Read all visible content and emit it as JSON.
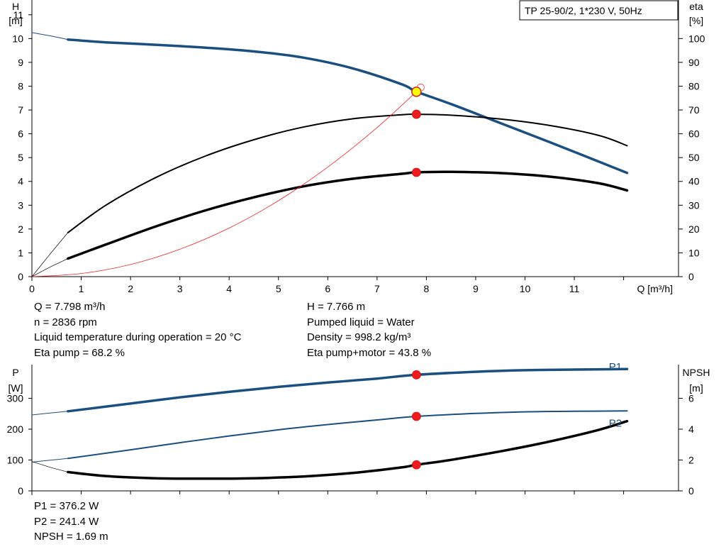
{
  "title_box": "TP 25-90/2, 1*230 V, 50Hz",
  "chart_data": [
    {
      "type": "line",
      "id": "head_efficiency_chart",
      "xlabel": "Q [m³/h]",
      "ylabel_left": [
        "H",
        "[m]"
      ],
      "ylabel_right": [
        "eta",
        "[%]"
      ],
      "xlim": [
        0,
        13
      ],
      "xticks": [
        0,
        1,
        2,
        3,
        4,
        5,
        6,
        7,
        8,
        9,
        10,
        11
      ],
      "ylim_left": [
        0,
        11.5
      ],
      "yticks_left": [
        0,
        1,
        2,
        3,
        4,
        5,
        6,
        7,
        8,
        9,
        10,
        11
      ],
      "ylim_right": [
        0,
        115
      ],
      "yticks_right": [
        0,
        10,
        20,
        30,
        40,
        50,
        60,
        70,
        80,
        90,
        100
      ],
      "grid": false,
      "series": [
        {
          "axis": "left",
          "color": "#1a4f80",
          "width": 3.5,
          "x": [
            0.73,
            1.5,
            2.5,
            3.5,
            4.5,
            5.5,
            6.5,
            7.5,
            7.8,
            8.5,
            9.5,
            10.5,
            12.07
          ],
          "y": [
            9.96,
            9.84,
            9.74,
            9.62,
            9.46,
            9.2,
            8.75,
            8.08,
            7.77,
            7.25,
            6.45,
            5.65,
            4.36
          ]
        },
        {
          "axis": "left",
          "color": "#1a4f80",
          "width": 1,
          "dash": "thin",
          "x": [
            0,
            0.35,
            0.73
          ],
          "y": [
            10.25,
            10.12,
            9.96
          ]
        },
        {
          "axis": "right",
          "color": "#000000",
          "width": 2,
          "x": [
            0.73,
            1.5,
            2.5,
            3.5,
            4.5,
            5.5,
            6.5,
            7.5,
            7.8,
            8.5,
            9.5,
            10.5,
            11.5,
            12.07
          ],
          "y": [
            18.5,
            30,
            41.5,
            50.5,
            57.5,
            62.8,
            66.3,
            68,
            68.2,
            67.8,
            66.2,
            63.5,
            59.3,
            55
          ]
        },
        {
          "axis": "right",
          "color": "#000000",
          "width": 0.7,
          "x": [
            0,
            0.35,
            0.73
          ],
          "y": [
            0,
            9,
            18.5
          ]
        },
        {
          "axis": "right",
          "color": "#000000",
          "width": 3.5,
          "x": [
            0.73,
            1.5,
            2.5,
            3.5,
            4.5,
            5.5,
            6.5,
            7.5,
            7.8,
            8.5,
            9.5,
            10.5,
            11.5,
            12.07
          ],
          "y": [
            7.6,
            13.5,
            21,
            27.7,
            33.3,
            37.9,
            41.1,
            43.2,
            43.8,
            44,
            43.5,
            42,
            39.2,
            36.2
          ]
        },
        {
          "axis": "right",
          "color": "#000000",
          "width": 0.7,
          "x": [
            0,
            0.35,
            0.73
          ],
          "y": [
            0,
            3.8,
            7.6
          ]
        },
        {
          "axis": "left",
          "color": "#ee2222",
          "width": 0.8,
          "x": [
            0,
            1,
            2,
            3,
            4,
            5,
            6,
            7,
            7.8
          ],
          "y": [
            0,
            0.13,
            0.51,
            1.15,
            2.04,
            3.19,
            4.6,
            6.26,
            7.77
          ]
        }
      ],
      "markers": [
        {
          "axis": "left",
          "x": 7.798,
          "y": 7.766,
          "color": "#ffff00",
          "stroke": "#cc2222"
        },
        {
          "axis": "right",
          "x": 7.798,
          "y": 68.2,
          "color": "#ee1c1c"
        },
        {
          "axis": "right",
          "x": 7.798,
          "y": 43.8,
          "color": "#ee1c1c"
        }
      ]
    },
    {
      "type": "line",
      "id": "power_npsh_chart",
      "ylabel_left": [
        "P",
        "[W]"
      ],
      "ylabel_right": [
        "NPSH",
        "[m]"
      ],
      "xlim": [
        0,
        13
      ],
      "ylim_left": [
        0,
        400
      ],
      "yticks_left": [
        0,
        100,
        200,
        300
      ],
      "ylim_right": [
        0,
        8
      ],
      "yticks_right": [
        0,
        2,
        4,
        6
      ],
      "grid": false,
      "series": [
        {
          "name": "P1",
          "axis": "left",
          "color": "#1a4f80",
          "width": 3.5,
          "x": [
            0.73,
            2,
            3,
            4,
            5,
            6,
            7,
            7.8,
            9,
            10,
            11,
            12.07
          ],
          "y": [
            258,
            283,
            303,
            321,
            337,
            351,
            364,
            376.2,
            386,
            391,
            393,
            395
          ]
        },
        {
          "axis": "left",
          "color": "#1a4f80",
          "width": 1,
          "x": [
            0,
            0.35,
            0.73
          ],
          "y": [
            246,
            252,
            258
          ]
        },
        {
          "name": "P2",
          "axis": "left",
          "color": "#1a4f80",
          "width": 2,
          "x": [
            0.73,
            2,
            3,
            4,
            5,
            6,
            7,
            7.8,
            9,
            10,
            11,
            12.07
          ],
          "y": [
            105,
            133,
            156,
            178,
            198,
            215,
            230,
            241.4,
            251,
            256,
            258,
            259
          ]
        },
        {
          "axis": "left",
          "color": "#1a4f80",
          "width": 1,
          "x": [
            0,
            0.35,
            0.73
          ],
          "y": [
            93,
            99,
            105
          ]
        },
        {
          "axis": "right",
          "color": "#000000",
          "width": 3.5,
          "x": [
            0.73,
            1.5,
            2.5,
            3.5,
            4.5,
            5.5,
            6.5,
            7.5,
            7.8,
            8.5,
            9.5,
            10.5,
            11.5,
            12.07
          ],
          "y": [
            1.22,
            0.96,
            0.82,
            0.79,
            0.82,
            0.93,
            1.16,
            1.52,
            1.69,
            2.01,
            2.56,
            3.2,
            3.96,
            4.52
          ]
        },
        {
          "axis": "right",
          "color": "#000000",
          "width": 0.7,
          "x": [
            0,
            0.35,
            0.73
          ],
          "y": [
            1.9,
            1.55,
            1.22
          ]
        }
      ],
      "series_labels": [
        {
          "text": "P1",
          "axis": "left",
          "x": 11.7,
          "y": 402,
          "color": "#1a4f80"
        },
        {
          "text": "P2",
          "axis": "left",
          "x": 11.7,
          "y": 220,
          "color": "#1a4f80"
        }
      ],
      "markers": [
        {
          "axis": "left",
          "x": 7.798,
          "y": 376.2,
          "color": "#ee1c1c"
        },
        {
          "axis": "left",
          "x": 7.798,
          "y": 241.4,
          "color": "#ee1c1c"
        },
        {
          "axis": "right",
          "x": 7.798,
          "y": 1.69,
          "color": "#ee1c1c"
        }
      ]
    }
  ],
  "info_top_left": [
    "Q = 7.798 m³/h",
    "n = 2836 rpm",
    "Liquid temperature during operation = 20 °C",
    "Eta pump = 68.2 %"
  ],
  "info_top_right": [
    "H = 7.766 m",
    "Pumped liquid = Water",
    "Density = 998.2 kg/m³",
    "Eta pump+motor = 43.8 %"
  ],
  "info_bottom_left": [
    "P1 = 376.2 W",
    "P2 = 241.4 W",
    "NPSH = 1.69 m"
  ]
}
